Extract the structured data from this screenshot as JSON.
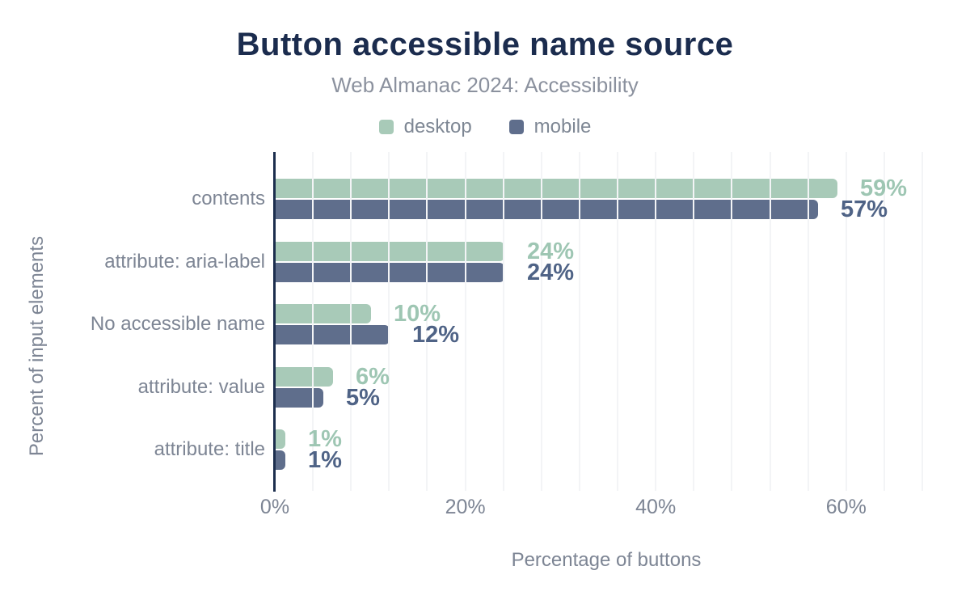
{
  "chart_data": {
    "type": "bar",
    "orientation": "horizontal",
    "title": "Button accessible name source",
    "subtitle": "Web Almanac 2024: Accessibility",
    "xlabel": "Percentage of buttons",
    "ylabel": "Percent of input elements",
    "categories": [
      "contents",
      "attribute: aria-label",
      "No accessible name",
      "attribute: value",
      "attribute: title"
    ],
    "series": [
      {
        "name": "desktop",
        "color": "#a8cab8",
        "label_color": "#9ec6b3",
        "values": [
          59,
          24,
          10,
          6,
          1
        ],
        "labels": [
          "59%",
          "24%",
          "10%",
          "6%",
          "1%"
        ]
      },
      {
        "name": "mobile",
        "color": "#5f6e8c",
        "label_color": "#4f6386",
        "values": [
          57,
          24,
          12,
          5,
          1
        ],
        "labels": [
          "57%",
          "24%",
          "12%",
          "5%",
          "1%"
        ]
      }
    ],
    "x_ticks": [
      {
        "value": 0,
        "label": "0%"
      },
      {
        "value": 20,
        "label": "20%"
      },
      {
        "value": 40,
        "label": "40%"
      },
      {
        "value": 60,
        "label": "60%"
      }
    ],
    "xlim": [
      0,
      68
    ],
    "grid": {
      "show": true,
      "minor_step_percent": 4,
      "color": "#f3f4f6"
    },
    "legend_position": "top",
    "axis_color": "#1c2e4e",
    "title_color": "#1b2c4e",
    "text_color": "#7d8594"
  }
}
